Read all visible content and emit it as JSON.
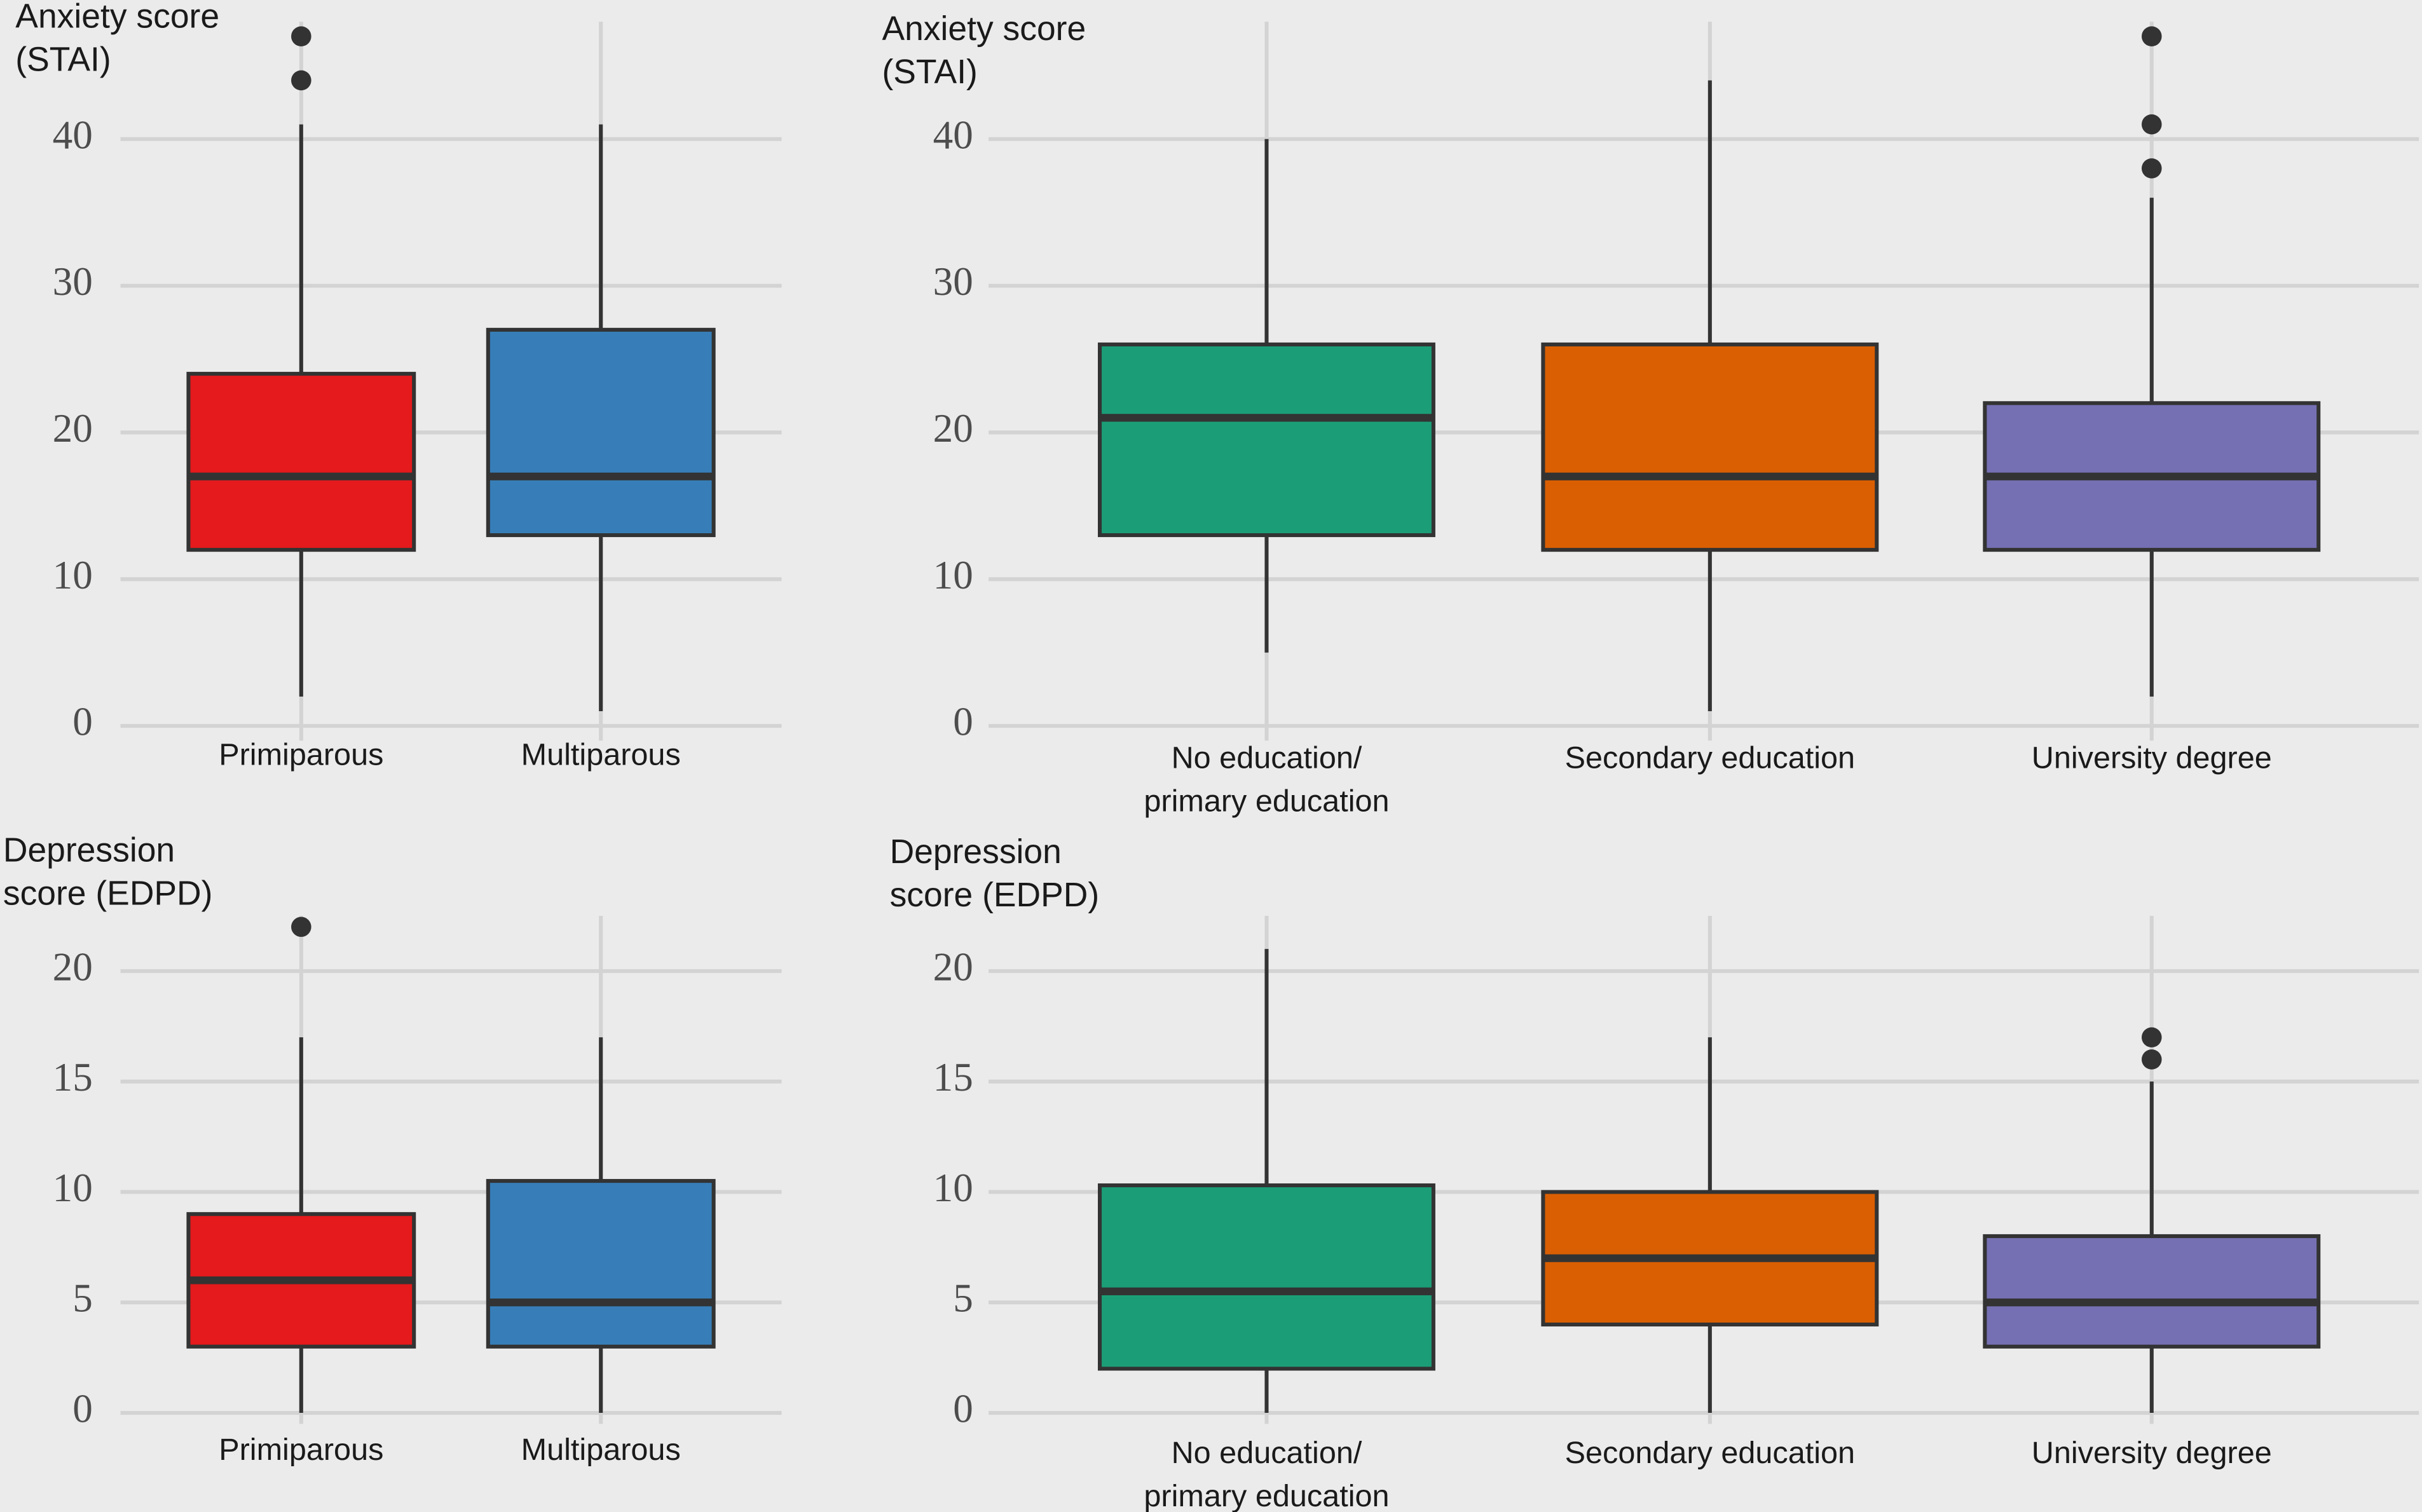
{
  "chart_data": [
    {
      "type": "box",
      "ylabel": [
        "Anxiety score",
        "(STAI)"
      ],
      "categories": [
        [
          "Primiparous"
        ],
        [
          "Multiparous"
        ]
      ],
      "boxes": [
        {
          "color": "#e41a1c",
          "whisker_low": 2,
          "q1": 12,
          "median": 17,
          "q3": 24,
          "whisker_high": 41,
          "outliers": [
            44,
            47
          ]
        },
        {
          "color": "#377eb8",
          "whisker_low": 1,
          "q1": 13,
          "median": 17,
          "q3": 27,
          "whisker_high": 41,
          "outliers": []
        }
      ],
      "ylim": [
        -1,
        48
      ],
      "yticks": [
        0,
        10,
        20,
        30,
        40
      ],
      "grid": true
    },
    {
      "type": "box",
      "ylabel": [
        "Anxiety score",
        "(STAI)"
      ],
      "categories": [
        [
          "No education/",
          "primary education"
        ],
        [
          "Secondary education"
        ],
        [
          "University degree"
        ]
      ],
      "boxes": [
        {
          "color": "#1b9e77",
          "whisker_low": 5,
          "q1": 13,
          "median": 21,
          "q3": 26,
          "whisker_high": 40,
          "outliers": []
        },
        {
          "color": "#d95f02",
          "whisker_low": 1,
          "q1": 12,
          "median": 17,
          "q3": 26,
          "whisker_high": 44,
          "outliers": []
        },
        {
          "color": "#7570b3",
          "whisker_low": 2,
          "q1": 12,
          "median": 17,
          "q3": 22,
          "whisker_high": 36,
          "outliers": [
            38,
            41,
            47
          ]
        }
      ],
      "ylim": [
        -1,
        48
      ],
      "yticks": [
        0,
        10,
        20,
        30,
        40
      ],
      "grid": true
    },
    {
      "type": "box",
      "ylabel": [
        "Depression",
        "score (EDPD)"
      ],
      "categories": [
        [
          "Primiparous"
        ],
        [
          "Multiparous"
        ]
      ],
      "boxes": [
        {
          "color": "#e41a1c",
          "whisker_low": 0,
          "q1": 3,
          "median": 6,
          "q3": 9,
          "whisker_high": 17,
          "outliers": [
            22
          ]
        },
        {
          "color": "#377eb8",
          "whisker_low": 0,
          "q1": 3,
          "median": 5,
          "q3": 10.5,
          "whisker_high": 17,
          "outliers": []
        }
      ],
      "ylim": [
        -0.5,
        22.5
      ],
      "yticks": [
        0,
        5,
        10,
        15,
        20
      ],
      "grid": true
    },
    {
      "type": "box",
      "ylabel": [
        "Depression",
        "score (EDPD)"
      ],
      "categories": [
        [
          "No education/",
          "primary education"
        ],
        [
          "Secondary education"
        ],
        [
          "University degree"
        ]
      ],
      "boxes": [
        {
          "color": "#1b9e77",
          "whisker_low": 0,
          "q1": 2,
          "median": 5.5,
          "q3": 10.3,
          "whisker_high": 21,
          "outliers": []
        },
        {
          "color": "#d95f02",
          "whisker_low": 0,
          "q1": 4,
          "median": 7,
          "q3": 10,
          "whisker_high": 17,
          "outliers": []
        },
        {
          "color": "#7570b3",
          "whisker_low": 0,
          "q1": 3,
          "median": 5,
          "q3": 8,
          "whisker_high": 15,
          "outliers": [
            16,
            17
          ]
        }
      ],
      "ylim": [
        -0.5,
        22.5
      ],
      "yticks": [
        0,
        5,
        10,
        15,
        20
      ],
      "grid": true
    }
  ]
}
